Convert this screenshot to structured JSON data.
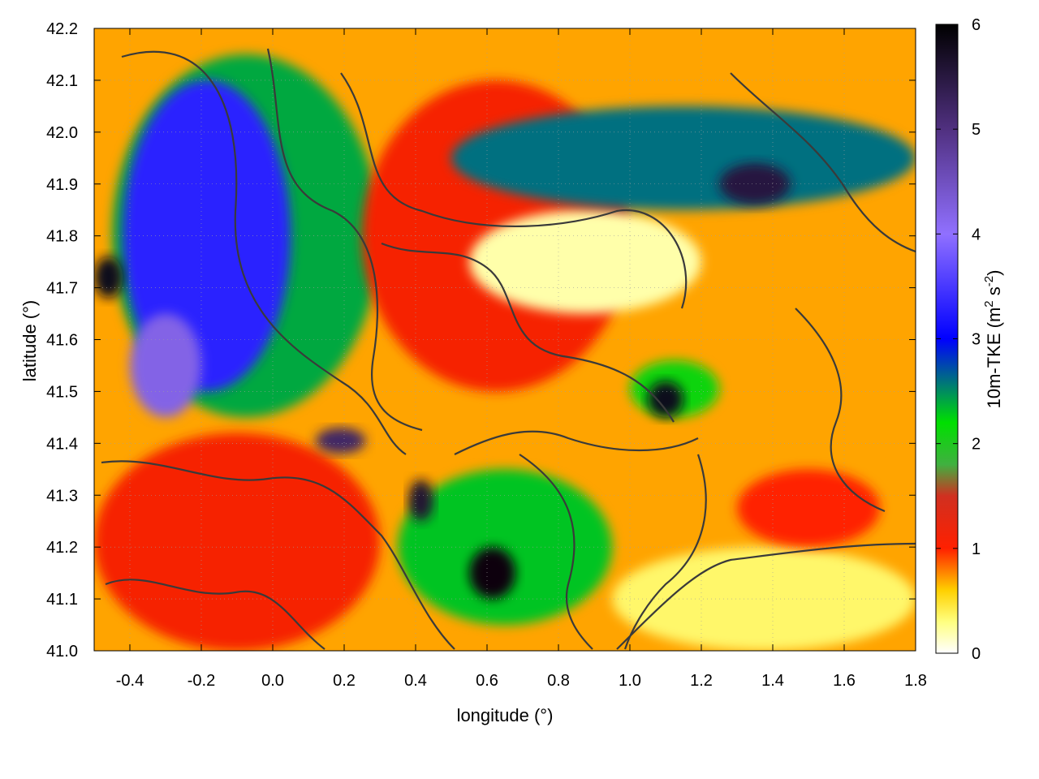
{
  "chart_data": {
    "type": "heatmap",
    "xlabel": "longitude (°)",
    "ylabel": "latitude (°)",
    "colorbar_label_parts": [
      "10m-TKE (m",
      "2",
      " s",
      "-2",
      ")"
    ],
    "xlim": [
      -0.5,
      1.8
    ],
    "ylim": [
      41.0,
      42.2
    ],
    "clim": [
      0,
      6
    ],
    "x_ticks": [
      -0.4,
      -0.2,
      0.0,
      0.2,
      0.4,
      0.6,
      0.8,
      1.0,
      1.2,
      1.4,
      1.6,
      1.8
    ],
    "x_tick_labels": [
      "-0.4",
      "-0.2",
      "0.0",
      "0.2",
      "0.4",
      "0.6",
      "0.8",
      "1.0",
      "1.2",
      "1.4",
      "1.6",
      "1.8"
    ],
    "y_ticks": [
      41.0,
      41.1,
      41.2,
      41.3,
      41.4,
      41.5,
      41.6,
      41.7,
      41.8,
      41.9,
      42.0,
      42.1,
      42.2
    ],
    "y_tick_labels": [
      "41.0",
      "41.1",
      "41.2",
      "41.3",
      "41.4",
      "41.5",
      "41.6",
      "41.7",
      "41.8",
      "41.9",
      "42.0",
      "42.1",
      "42.2"
    ],
    "colorbar_ticks": [
      0,
      1,
      2,
      3,
      4,
      5,
      6
    ],
    "colorbar_tick_labels": [
      "0",
      "1",
      "2",
      "3",
      "4",
      "5",
      "6"
    ],
    "colormap": [
      {
        "value": 0.0,
        "color": "#ffffff"
      },
      {
        "value": 0.3,
        "color": "#ffff80"
      },
      {
        "value": 0.6,
        "color": "#ffd000"
      },
      {
        "value": 1.0,
        "color": "#ff2000"
      },
      {
        "value": 1.5,
        "color": "#d03020"
      },
      {
        "value": 1.8,
        "color": "#40b040"
      },
      {
        "value": 2.2,
        "color": "#00e000"
      },
      {
        "value": 3.0,
        "color": "#0000ff"
      },
      {
        "value": 4.0,
        "color": "#9070ff"
      },
      {
        "value": 5.0,
        "color": "#503080"
      },
      {
        "value": 6.0,
        "color": "#000000"
      }
    ],
    "grid": true,
    "field_regions": [
      {
        "lon": -0.5,
        "lat": 41.0,
        "lon2": 1.8,
        "lat2": 42.2,
        "tke": 0.7
      },
      {
        "lon": -0.45,
        "lat": 41.45,
        "lon2": 0.3,
        "lat2": 42.15,
        "tke": 2.4
      },
      {
        "lon": -0.42,
        "lat": 41.5,
        "lon2": 0.05,
        "lat2": 42.1,
        "tke": 3.3
      },
      {
        "lon": -0.4,
        "lat": 41.45,
        "lon2": -0.2,
        "lat2": 41.65,
        "tke": 4.2
      },
      {
        "lon": -0.5,
        "lat": 41.68,
        "lon2": -0.42,
        "lat2": 41.76,
        "tke": 5.8
      },
      {
        "lon": 0.25,
        "lat": 41.5,
        "lon2": 1.0,
        "lat2": 42.1,
        "tke": 1.1
      },
      {
        "lon": 0.55,
        "lat": 41.65,
        "lon2": 1.2,
        "lat2": 41.85,
        "tke": 0.2
      },
      {
        "lon": 0.5,
        "lat": 41.85,
        "lon2": 1.8,
        "lat2": 42.05,
        "tke": 2.6
      },
      {
        "lon": 1.25,
        "lat": 41.86,
        "lon2": 1.45,
        "lat2": 41.94,
        "tke": 5.5
      },
      {
        "lon": 1.0,
        "lat": 41.45,
        "lon2": 1.25,
        "lat2": 41.56,
        "tke": 2.1
      },
      {
        "lon": 1.05,
        "lat": 41.45,
        "lon2": 1.15,
        "lat2": 41.52,
        "tke": 5.8
      },
      {
        "lon": -0.5,
        "lat": 41.0,
        "lon2": 0.3,
        "lat2": 41.42,
        "tke": 1.1
      },
      {
        "lon": 0.35,
        "lat": 41.05,
        "lon2": 0.95,
        "lat2": 41.35,
        "tke": 2.3
      },
      {
        "lon": 0.38,
        "lat": 41.25,
        "lon2": 0.45,
        "lat2": 41.33,
        "tke": 5.6
      },
      {
        "lon": 0.55,
        "lat": 41.1,
        "lon2": 0.68,
        "lat2": 41.2,
        "tke": 5.9
      },
      {
        "lon": 0.12,
        "lat": 41.38,
        "lon2": 0.26,
        "lat2": 41.43,
        "tke": 5.2
      },
      {
        "lon": 0.95,
        "lat": 41.0,
        "lon2": 1.8,
        "lat2": 41.2,
        "tke": 0.35
      },
      {
        "lon": 1.3,
        "lat": 41.2,
        "lon2": 1.7,
        "lat2": 41.35,
        "tke": 1.0
      }
    ]
  }
}
